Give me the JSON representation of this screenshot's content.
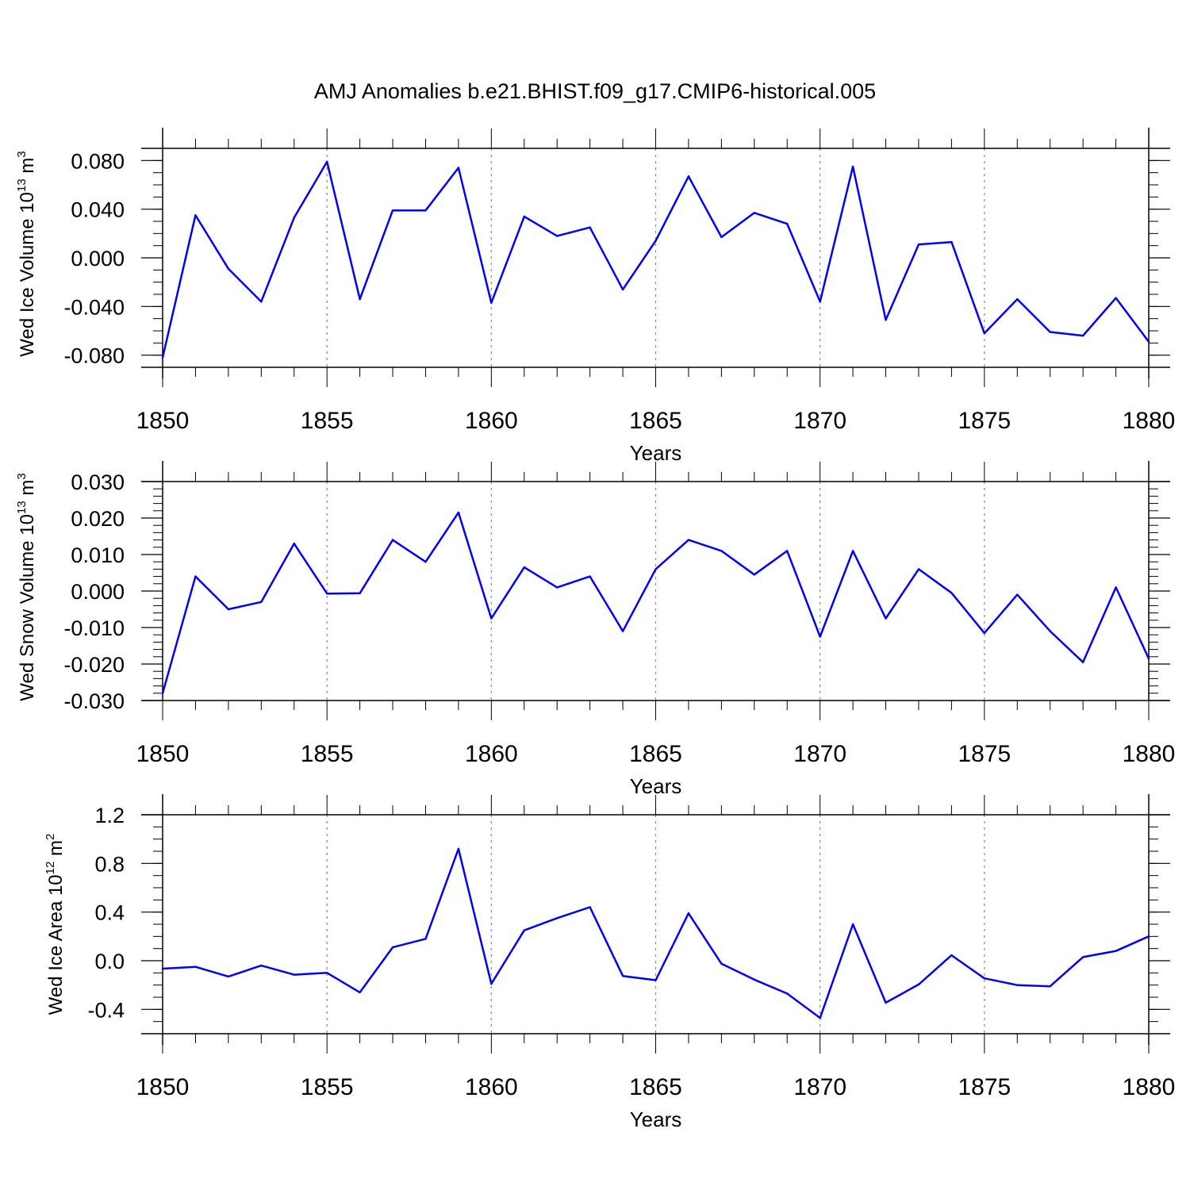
{
  "colors": {
    "series": "#0000ff",
    "axis": "#000000",
    "grid": "#888888"
  },
  "chart_data": [
    {
      "type": "line",
      "title": "AMJ Anomalies b.e21.BHIST.f09_g17.CMIP6-historical.005",
      "xlabel": "Years",
      "ylabel": {
        "prefix": "Wed Ice Volume 10",
        "exp": "13",
        "unit": " m",
        "unit_exp": "3"
      },
      "ylim": [
        -0.09,
        0.09
      ],
      "xlim": [
        1850,
        1880
      ],
      "yticks": [
        -0.08,
        -0.04,
        0.0,
        0.04,
        0.08
      ],
      "yticklabels": [
        "-0.080",
        "-0.040",
        "0.000",
        "0.040",
        "0.080"
      ],
      "yminor": 0.01,
      "xticks": [
        1850,
        1855,
        1860,
        1865,
        1870,
        1875,
        1880
      ],
      "xticklabels": [
        "1850",
        "1855",
        "1860",
        "1865",
        "1870",
        "1875",
        "1880"
      ],
      "grid_x": [
        1855,
        1860,
        1865,
        1870,
        1875
      ],
      "x": [
        1850,
        1851,
        1852,
        1853,
        1854,
        1855,
        1856,
        1857,
        1858,
        1859,
        1860,
        1861,
        1862,
        1863,
        1864,
        1865,
        1866,
        1867,
        1868,
        1869,
        1870,
        1871,
        1872,
        1873,
        1874,
        1875,
        1876,
        1877,
        1878,
        1879,
        1880
      ],
      "values": [
        -0.082,
        0.035,
        -0.009,
        -0.036,
        0.033,
        0.079,
        -0.034,
        0.039,
        0.039,
        0.074,
        -0.037,
        0.034,
        0.018,
        0.025,
        -0.026,
        0.014,
        0.067,
        0.017,
        0.037,
        0.028,
        -0.036,
        0.075,
        -0.051,
        0.011,
        0.013,
        -0.062,
        -0.034,
        -0.061,
        -0.064,
        -0.033,
        -0.069
      ]
    },
    {
      "type": "line",
      "xlabel": "Years",
      "ylabel": {
        "prefix": "Wed Snow Volume 10",
        "exp": "13",
        "unit": " m",
        "unit_exp": "3"
      },
      "ylim": [
        -0.03,
        0.03
      ],
      "xlim": [
        1850,
        1880
      ],
      "yticks": [
        -0.03,
        -0.02,
        -0.01,
        0.0,
        0.01,
        0.02,
        0.03
      ],
      "yticklabels": [
        "-0.030",
        "-0.020",
        "-0.010",
        "0.000",
        "0.010",
        "0.020",
        "0.030"
      ],
      "yminor": 0.002,
      "xticks": [
        1850,
        1855,
        1860,
        1865,
        1870,
        1875,
        1880
      ],
      "xticklabels": [
        "1850",
        "1855",
        "1860",
        "1865",
        "1870",
        "1875",
        "1880"
      ],
      "grid_x": [
        1855,
        1860,
        1865,
        1870,
        1875
      ],
      "x": [
        1850,
        1851,
        1852,
        1853,
        1854,
        1855,
        1856,
        1857,
        1858,
        1859,
        1860,
        1861,
        1862,
        1863,
        1864,
        1865,
        1866,
        1867,
        1868,
        1869,
        1870,
        1871,
        1872,
        1873,
        1874,
        1875,
        1876,
        1877,
        1878,
        1879,
        1880
      ],
      "values": [
        -0.028,
        0.004,
        -0.005,
        -0.003,
        0.013,
        -0.0007,
        -0.0006,
        0.014,
        0.008,
        0.0215,
        -0.0075,
        0.0065,
        0.001,
        0.004,
        -0.011,
        0.006,
        0.014,
        0.011,
        0.0045,
        0.011,
        -0.0125,
        0.011,
        -0.0075,
        0.006,
        -0.0005,
        -0.0115,
        -0.001,
        -0.011,
        -0.0195,
        0.001,
        -0.0185
      ]
    },
    {
      "type": "line",
      "xlabel": "Years",
      "ylabel": {
        "prefix": "Wed Ice Area 10",
        "exp": "12",
        "unit": " m",
        "unit_exp": "2"
      },
      "ylim": [
        -0.6,
        1.2
      ],
      "xlim": [
        1850,
        1880
      ],
      "yticks": [
        -0.4,
        0.0,
        0.4,
        0.8,
        1.2
      ],
      "yticklabels": [
        "-0.4",
        "0.0",
        "0.4",
        "0.8",
        "1.2"
      ],
      "yminor": 0.1,
      "xticks": [
        1850,
        1855,
        1860,
        1865,
        1870,
        1875,
        1880
      ],
      "xticklabels": [
        "1850",
        "1855",
        "1860",
        "1865",
        "1870",
        "1875",
        "1880"
      ],
      "grid_x": [
        1855,
        1860,
        1865,
        1870,
        1875
      ],
      "x": [
        1850,
        1851,
        1852,
        1853,
        1854,
        1855,
        1856,
        1857,
        1858,
        1859,
        1860,
        1861,
        1862,
        1863,
        1864,
        1865,
        1866,
        1867,
        1868,
        1869,
        1870,
        1871,
        1872,
        1873,
        1874,
        1875,
        1876,
        1877,
        1878,
        1879,
        1880
      ],
      "values": [
        -0.065,
        -0.05,
        -0.13,
        -0.04,
        -0.115,
        -0.1,
        -0.26,
        0.11,
        0.18,
        0.92,
        -0.19,
        0.25,
        0.35,
        0.44,
        -0.125,
        -0.16,
        0.39,
        -0.025,
        -0.155,
        -0.27,
        -0.47,
        0.3,
        -0.345,
        -0.195,
        0.045,
        -0.145,
        -0.2,
        -0.21,
        0.03,
        0.08,
        0.2
      ]
    }
  ]
}
